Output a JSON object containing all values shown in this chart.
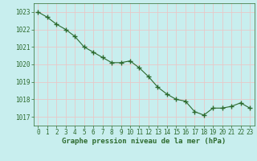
{
  "x": [
    0,
    1,
    2,
    3,
    4,
    5,
    6,
    7,
    8,
    9,
    10,
    11,
    12,
    13,
    14,
    15,
    16,
    17,
    18,
    19,
    20,
    21,
    22,
    23
  ],
  "y": [
    1023.0,
    1022.7,
    1022.3,
    1022.0,
    1021.6,
    1021.0,
    1020.7,
    1020.4,
    1020.1,
    1020.1,
    1020.2,
    1019.8,
    1019.3,
    1018.7,
    1018.3,
    1018.0,
    1017.9,
    1017.3,
    1017.1,
    1017.5,
    1017.5,
    1017.6,
    1017.8,
    1017.5
  ],
  "line_color": "#2d6a2d",
  "marker_color": "#2d6a2d",
  "bg_color": "#c8eeee",
  "grid_color": "#e8c8c8",
  "xlabel": "Graphe pression niveau de la mer (hPa)",
  "xlabel_color": "#2d6a2d",
  "tick_color": "#2d6a2d",
  "ylim": [
    1016.5,
    1023.5
  ],
  "xlim": [
    -0.5,
    23.5
  ],
  "yticks": [
    1017,
    1018,
    1019,
    1020,
    1021,
    1022,
    1023
  ],
  "xticks": [
    0,
    1,
    2,
    3,
    4,
    5,
    6,
    7,
    8,
    9,
    10,
    11,
    12,
    13,
    14,
    15,
    16,
    17,
    18,
    19,
    20,
    21,
    22,
    23
  ],
  "figsize": [
    3.2,
    2.0
  ],
  "dpi": 100
}
